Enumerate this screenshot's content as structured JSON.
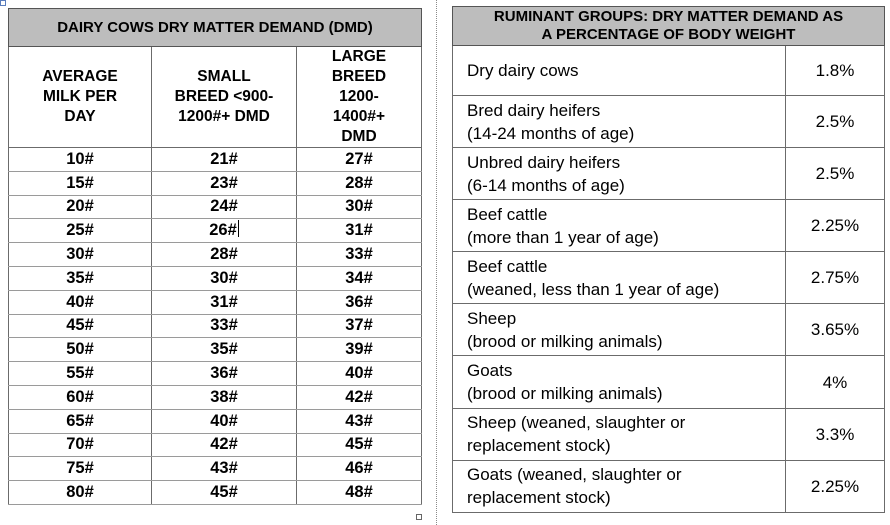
{
  "left_table": {
    "title": "DAIRY COWS DRY MATTER DEMAND (DMD)",
    "headers": [
      [
        "AVERAGE",
        "MILK PER",
        "DAY"
      ],
      [
        "SMALL",
        "BREED <900-",
        "1200#+ DMD"
      ],
      [
        "LARGE",
        "BREED",
        "1200-",
        "1400#+",
        "DMD"
      ]
    ],
    "rows": [
      [
        "10#",
        "21#",
        "27#"
      ],
      [
        "15#",
        "23#",
        "28#"
      ],
      [
        "20#",
        "24#",
        "30#"
      ],
      [
        "25#",
        "26#",
        "31#"
      ],
      [
        "30#",
        "28#",
        "33#"
      ],
      [
        "35#",
        "30#",
        "34#"
      ],
      [
        "40#",
        "31#",
        "36#"
      ],
      [
        "45#",
        "33#",
        "37#"
      ],
      [
        "50#",
        "35#",
        "39#"
      ],
      [
        "55#",
        "36#",
        "40#"
      ],
      [
        "60#",
        "38#",
        "42#"
      ],
      [
        "65#",
        "40#",
        "43#"
      ],
      [
        "70#",
        "42#",
        "45#"
      ],
      [
        "75#",
        "43#",
        "46#"
      ],
      [
        "80#",
        "45#",
        "48#"
      ]
    ]
  },
  "right_table": {
    "title_lines": [
      "RUMINANT GROUPS:  DRY MATTER DEMAND AS",
      "A PERCENTAGE OF BODY WEIGHT"
    ],
    "rows": [
      {
        "group": [
          "Dry dairy cows"
        ],
        "percent": "1.8%"
      },
      {
        "group": [
          "Bred dairy heifers",
          "(14-24 months of age)"
        ],
        "percent": "2.5%"
      },
      {
        "group": [
          "Unbred dairy heifers",
          "(6-14 months of age)"
        ],
        "percent": "2.5%"
      },
      {
        "group": [
          "Beef cattle",
          "(more than 1 year of age)"
        ],
        "percent": "2.25%"
      },
      {
        "group": [
          "Beef cattle",
          "(weaned, less than 1 year of age)"
        ],
        "percent": "2.75%"
      },
      {
        "group": [
          "Sheep",
          "(brood or milking animals)"
        ],
        "percent": "3.65%"
      },
      {
        "group": [
          "Goats",
          "(brood or milking animals)"
        ],
        "percent": "4%"
      },
      {
        "group": [
          "Sheep (weaned, slaughter or",
          "replacement stock)"
        ],
        "percent": "3.3%"
      },
      {
        "group": [
          "Goats (weaned, slaughter or",
          "replacement stock)"
        ],
        "percent": "2.25%"
      }
    ]
  }
}
